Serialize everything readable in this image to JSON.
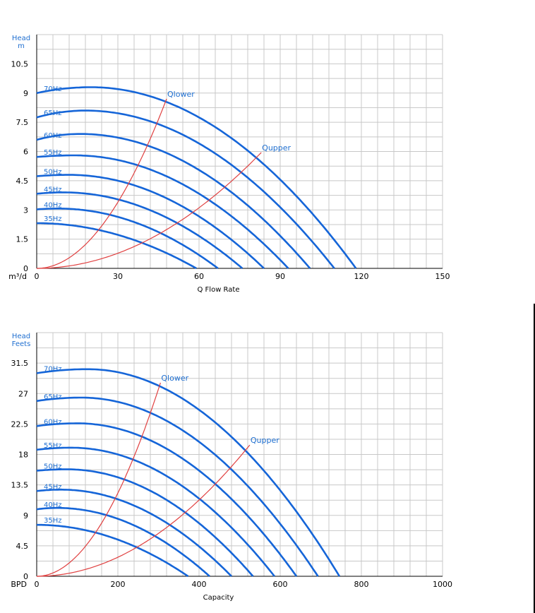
{
  "colors": {
    "curve": "#1565d8",
    "bound": "#e04040",
    "grid": "#c8c8c8",
    "label": "#1f6fd0"
  },
  "chart_data": [
    {
      "type": "line",
      "ylabel_lines": [
        "Head",
        "m"
      ],
      "xunit": "m³/d",
      "xlabel": "Q  Flow Rate",
      "xlim": [
        0,
        150
      ],
      "ylim": [
        0,
        12
      ],
      "xticks": [
        0,
        30,
        60,
        90,
        120,
        150
      ],
      "yticks": [
        0,
        1.5,
        3,
        4.5,
        6,
        7.5,
        9,
        10.5
      ],
      "ytick_labels": [
        "0",
        "1.5",
        "3",
        "4.5",
        "6",
        "7.5",
        "9",
        "10.5"
      ],
      "series": [
        {
          "name": "35Hz",
          "shutoff_head": 2.32,
          "peak_flow": 0,
          "peak_head": 2.32,
          "max_flow": 59
        },
        {
          "name": "40Hz",
          "shutoff_head": 3.03,
          "peak_flow": 8,
          "peak_head": 3.07,
          "max_flow": 67
        },
        {
          "name": "45Hz",
          "shutoff_head": 3.83,
          "peak_flow": 10,
          "peak_head": 3.9,
          "max_flow": 76
        },
        {
          "name": "50Hz",
          "shutoff_head": 4.73,
          "peak_flow": 12,
          "peak_head": 4.8,
          "max_flow": 84
        },
        {
          "name": "55Hz",
          "shutoff_head": 5.72,
          "peak_flow": 14,
          "peak_head": 5.8,
          "max_flow": 93
        },
        {
          "name": "60Hz",
          "shutoff_head": 6.6,
          "peak_flow": 16,
          "peak_head": 6.9,
          "max_flow": 101
        },
        {
          "name": "65Hz",
          "shutoff_head": 7.75,
          "peak_flow": 18,
          "peak_head": 8.1,
          "max_flow": 110
        },
        {
          "name": "70Hz",
          "shutoff_head": 9.0,
          "peak_flow": 20,
          "peak_head": 9.3,
          "max_flow": 118
        }
      ],
      "bounds": [
        {
          "name": "Qlower",
          "end_flow": 48,
          "end_head": 8.7
        },
        {
          "name": "Qupper",
          "end_flow": 83,
          "end_head": 5.95
        }
      ]
    },
    {
      "type": "line",
      "ylabel_lines": [
        "Head",
        "Feets"
      ],
      "xunit": "BPD",
      "xlabel": "Capacity",
      "xlim": [
        0,
        1000
      ],
      "ylim": [
        0,
        36
      ],
      "xticks": [
        0,
        200,
        400,
        600,
        800,
        1000
      ],
      "yticks": [
        0,
        4.5,
        9,
        13.5,
        18,
        22.5,
        27,
        31.5
      ],
      "ytick_labels": [
        "0",
        "4.5",
        "9",
        "13.5",
        "18",
        "22.5",
        "27",
        "31.5"
      ],
      "series": [
        {
          "name": "35Hz",
          "shutoff_head": 7.6,
          "peak_flow": 0,
          "peak_head": 7.6,
          "max_flow": 373
        },
        {
          "name": "40Hz",
          "shutoff_head": 9.9,
          "peak_flow": 50,
          "peak_head": 10.1,
          "max_flow": 426
        },
        {
          "name": "45Hz",
          "shutoff_head": 12.6,
          "peak_flow": 60,
          "peak_head": 12.8,
          "max_flow": 480
        },
        {
          "name": "50Hz",
          "shutoff_head": 15.6,
          "peak_flow": 75,
          "peak_head": 15.8,
          "max_flow": 533
        },
        {
          "name": "55Hz",
          "shutoff_head": 18.7,
          "peak_flow": 85,
          "peak_head": 19.0,
          "max_flow": 586
        },
        {
          "name": "60Hz",
          "shutoff_head": 22.2,
          "peak_flow": 100,
          "peak_head": 22.6,
          "max_flow": 640
        },
        {
          "name": "65Hz",
          "shutoff_head": 25.9,
          "peak_flow": 110,
          "peak_head": 26.4,
          "max_flow": 693
        },
        {
          "name": "70Hz",
          "shutoff_head": 30.0,
          "peak_flow": 125,
          "peak_head": 30.6,
          "max_flow": 746
        }
      ],
      "bounds": [
        {
          "name": "Qlower",
          "end_flow": 305,
          "end_head": 28.6
        },
        {
          "name": "Qupper",
          "end_flow": 525,
          "end_head": 19.4
        }
      ]
    }
  ]
}
